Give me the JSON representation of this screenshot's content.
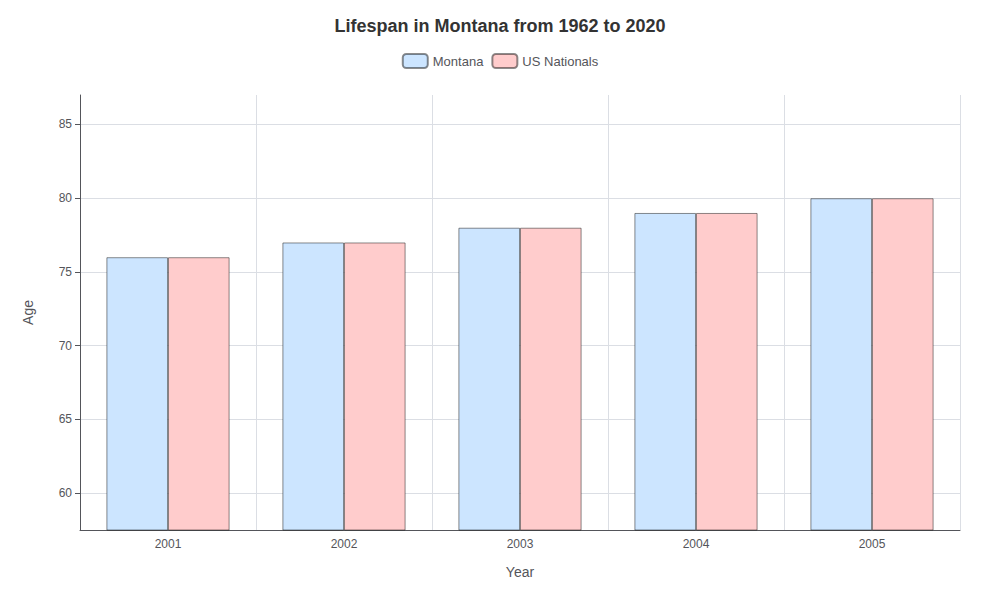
{
  "chart_data": {
    "type": "bar",
    "title": "Lifespan in Montana from 1962 to 2020",
    "xlabel": "Year",
    "ylabel": "Age",
    "categories": [
      "2001",
      "2002",
      "2003",
      "2004",
      "2005"
    ],
    "series": [
      {
        "name": "Montana",
        "color": "#cce5ff",
        "values": [
          76,
          77,
          78,
          79,
          80
        ]
      },
      {
        "name": "US Nationals",
        "color": "#ffcccc",
        "values": [
          76,
          77,
          78,
          79,
          80
        ]
      }
    ],
    "ylim": [
      57.5,
      87
    ],
    "yticks": [
      60,
      65,
      70,
      75,
      80,
      85
    ],
    "grid": true,
    "legend": "top"
  }
}
